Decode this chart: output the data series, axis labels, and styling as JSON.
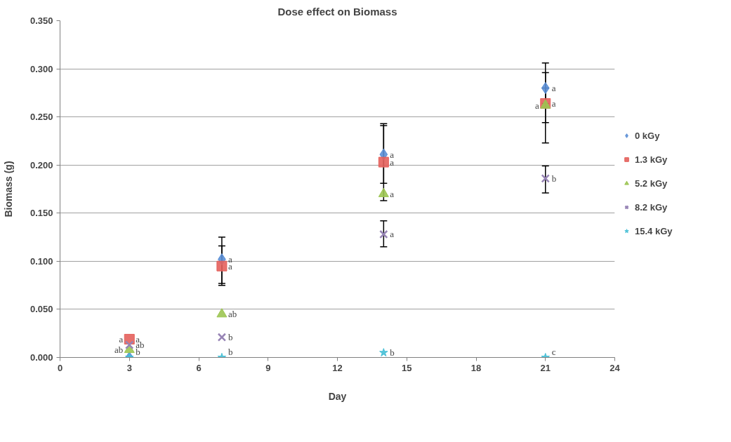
{
  "chart_data": {
    "type": "scatter",
    "title": "Dose effect on Biomass",
    "xlabel": "Day",
    "ylabel": "Biomass (g)",
    "x": [
      3,
      7,
      14,
      21
    ],
    "series": [
      {
        "name": "0 kGy",
        "color": "#5b8fd6",
        "marker": "diamond",
        "values": [
          null,
          0.102,
          0.211,
          0.28
        ],
        "errors": [
          null,
          [
            0.077,
            0.125
          ],
          [
            0.181,
            0.241
          ],
          [
            0.264,
            0.296
          ]
        ]
      },
      {
        "name": "1.3 kGy",
        "color": "#e4615c",
        "marker": "square",
        "values": [
          0.019,
          0.095,
          0.203,
          0.264
        ],
        "errors": [
          null,
          [
            0.075,
            0.116
          ],
          [
            0.163,
            0.243
          ],
          [
            0.223,
            0.306
          ]
        ]
      },
      {
        "name": "5.2 kGy",
        "color": "#9cc552",
        "marker": "triangle",
        "values": [
          0.008,
          0.045,
          0.17,
          0.262
        ],
        "errors": [
          null,
          null,
          null,
          [
            0.244,
            0.28
          ]
        ]
      },
      {
        "name": "8.2 kGy",
        "color": "#9784b5",
        "marker": "cross",
        "values": [
          0.013,
          0.021,
          0.128,
          0.186
        ],
        "errors": [
          null,
          null,
          [
            0.115,
            0.142
          ],
          [
            0.171,
            0.199
          ]
        ]
      },
      {
        "name": "15.4 kGy",
        "color": "#45bfd6",
        "marker": "star",
        "values": [
          0.0,
          0.0,
          0.005,
          0.0
        ]
      }
    ],
    "annotations": [
      {
        "text": "a",
        "x": 3,
        "y": 0.019
      },
      {
        "text": "a",
        "x": 3,
        "y": 0.019
      },
      {
        "text": "ab",
        "x": 3,
        "y": 0.013
      },
      {
        "text": "ab",
        "x": 3,
        "y": 0.008
      },
      {
        "text": "b",
        "x": 3,
        "y": 0.0
      },
      {
        "text": "a",
        "x": 7,
        "y": 0.102
      },
      {
        "text": "a",
        "x": 7,
        "y": 0.095
      },
      {
        "text": "ab",
        "x": 7,
        "y": 0.045
      },
      {
        "text": "b",
        "x": 7,
        "y": 0.021
      },
      {
        "text": "b",
        "x": 7,
        "y": 0.0
      },
      {
        "text": "a",
        "x": 14,
        "y": 0.211
      },
      {
        "text": "a",
        "x": 14,
        "y": 0.203
      },
      {
        "text": "a",
        "x": 14,
        "y": 0.17
      },
      {
        "text": "a",
        "x": 14,
        "y": 0.128
      },
      {
        "text": "b",
        "x": 14,
        "y": 0.005
      },
      {
        "text": "a",
        "x": 21,
        "y": 0.28
      },
      {
        "text": "a",
        "x": 21,
        "y": 0.264
      },
      {
        "text": "a",
        "x": 21,
        "y": 0.262
      },
      {
        "text": "b",
        "x": 21,
        "y": 0.186
      },
      {
        "text": "c",
        "x": 21,
        "y": 0.0
      }
    ],
    "xlim": [
      0,
      24
    ],
    "xticks": [
      0,
      3,
      6,
      9,
      12,
      15,
      18,
      21,
      24
    ],
    "ylim": [
      0,
      0.35
    ],
    "yticks": [
      {
        "value": 0,
        "label": "0.000"
      },
      {
        "value": 0.05,
        "label": "0.050"
      },
      {
        "value": 0.1,
        "label": "0.100"
      },
      {
        "value": 0.15,
        "label": "0.150"
      },
      {
        "value": 0.2,
        "label": "0.200"
      },
      {
        "value": 0.25,
        "label": "0.250"
      },
      {
        "value": 0.3,
        "label": "0.300"
      },
      {
        "value": 0.35,
        "label": "0.350"
      }
    ],
    "grid": "y",
    "legend": "right"
  }
}
